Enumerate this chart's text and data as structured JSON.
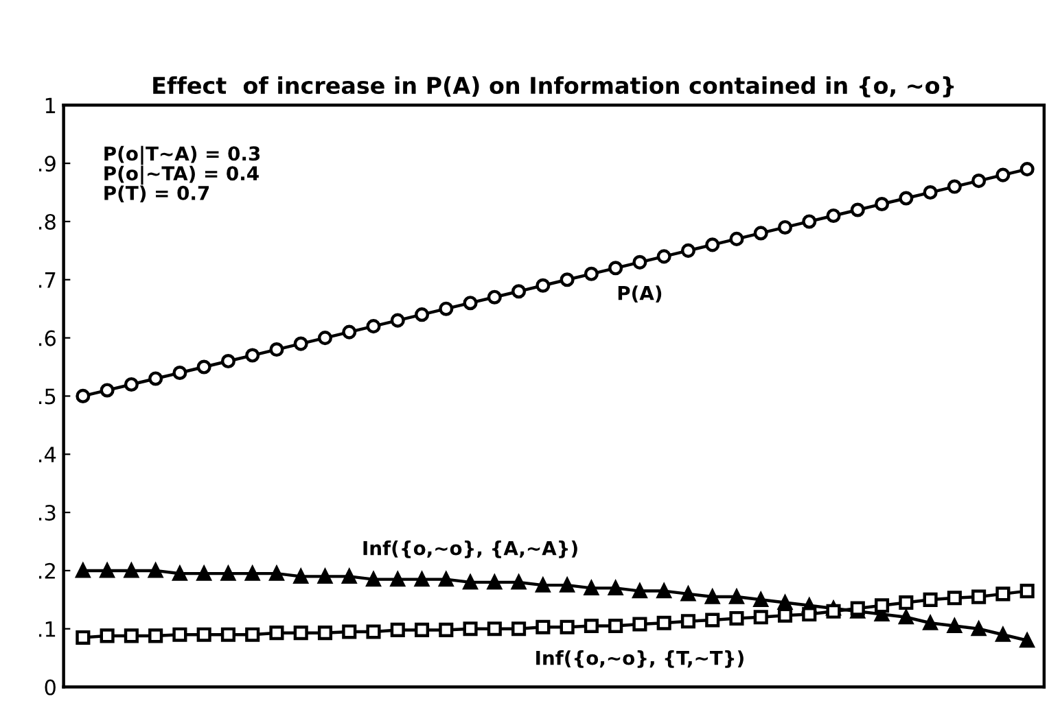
{
  "chart_data": {
    "type": "line",
    "title": "Effect  of increase in P(A) on Information contained in {o, ~o}",
    "categories": [
      null,
      null,
      null,
      null,
      null,
      null,
      null,
      null,
      null,
      null,
      null,
      null,
      null,
      null,
      null,
      null,
      null,
      null,
      null,
      null,
      null,
      null,
      null,
      null,
      null,
      null,
      null,
      null,
      null,
      null,
      null,
      null,
      null,
      null,
      null,
      null,
      null,
      null,
      null,
      null
    ],
    "series": [
      {
        "name": "P(A)",
        "color": "#000000",
        "marker": "circle",
        "values": [
          0.5,
          0.51,
          0.52,
          0.53,
          0.54,
          0.55,
          0.56,
          0.57,
          0.58,
          0.59,
          0.6,
          0.61,
          0.62,
          0.63,
          0.64,
          0.65,
          0.66,
          0.67,
          0.68,
          0.69,
          0.7,
          0.71,
          0.72,
          0.73,
          0.74,
          0.75,
          0.76,
          0.77,
          0.78,
          0.79,
          0.8,
          0.81,
          0.82,
          0.83,
          0.84,
          0.85,
          0.86,
          0.87,
          0.88,
          0.89
        ]
      },
      {
        "name": "Inf({o,~o}, {A,~A})",
        "color": "#000000",
        "marker": "triangle",
        "values": [
          0.2,
          0.2,
          0.2,
          0.2,
          0.195,
          0.195,
          0.195,
          0.195,
          0.195,
          0.19,
          0.19,
          0.19,
          0.185,
          0.185,
          0.185,
          0.185,
          0.18,
          0.18,
          0.18,
          0.175,
          0.175,
          0.17,
          0.17,
          0.165,
          0.165,
          0.16,
          0.155,
          0.155,
          0.15,
          0.145,
          0.14,
          0.135,
          0.13,
          0.125,
          0.12,
          0.11,
          0.105,
          0.1,
          0.09,
          0.08
        ]
      },
      {
        "name": "Inf({o,~o}, {T,~T})",
        "color": "#000000",
        "marker": "square",
        "values": [
          0.085,
          0.088,
          0.088,
          0.088,
          0.09,
          0.09,
          0.09,
          0.09,
          0.093,
          0.093,
          0.093,
          0.095,
          0.095,
          0.098,
          0.098,
          0.098,
          0.1,
          0.1,
          0.1,
          0.103,
          0.103,
          0.105,
          0.105,
          0.108,
          0.11,
          0.113,
          0.115,
          0.118,
          0.12,
          0.123,
          0.125,
          0.13,
          0.135,
          0.14,
          0.145,
          0.15,
          0.153,
          0.155,
          0.16,
          0.165
        ]
      }
    ],
    "ylim": [
      0,
      1
    ],
    "yticks": [
      0,
      {
        "value": 0.1,
        "label": ".1"
      },
      {
        "value": 0.2,
        "label": ".2"
      },
      {
        "value": 0.3,
        "label": ".3"
      },
      {
        "value": 0.4,
        "label": ".4"
      },
      {
        "value": 0.5,
        "label": ".5"
      },
      {
        "value": 0.6,
        "label": ".6"
      },
      {
        "value": 0.7,
        "label": ".7"
      },
      {
        "value": 0.8,
        "label": ".8"
      },
      {
        "value": 0.9,
        "label": ".9"
      },
      1
    ],
    "tick_labels": "y",
    "grid": false,
    "legend": false,
    "line_style": "solid",
    "annotations": [
      "P(o|T~A) = 0.3\nP(o|~TA) = 0.4\nP(T) = 0.7"
    ]
  }
}
